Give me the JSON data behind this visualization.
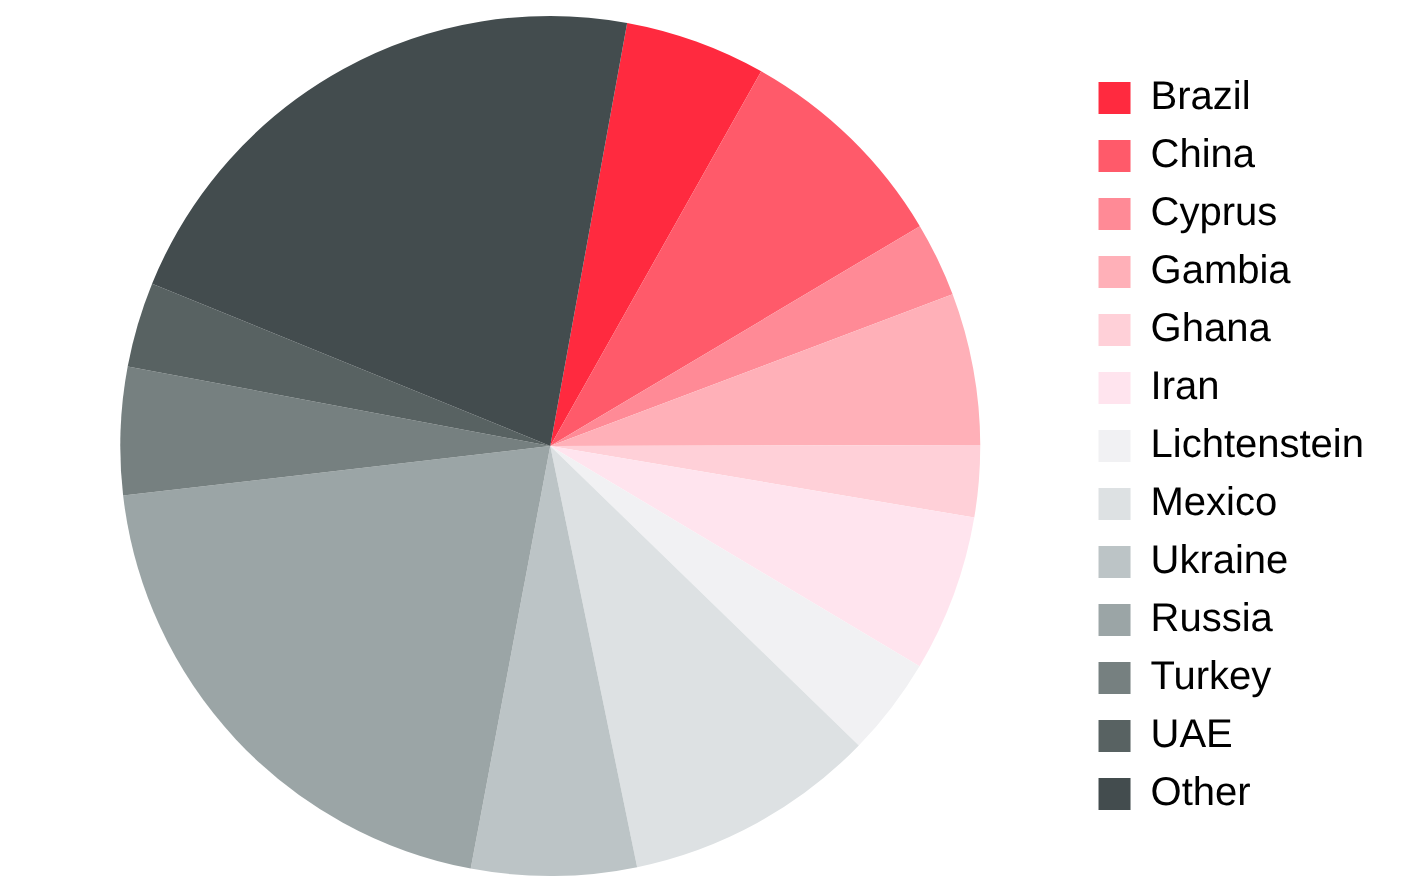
{
  "chart_data": {
    "type": "pie",
    "categories": [
      "Brazil",
      "China",
      "Cyprus",
      "Gambia",
      "Ghana",
      "Iran",
      "Lichtenstein",
      "Mexico",
      "Ukraine",
      "Russia",
      "Turkey",
      "UAE",
      "Other"
    ],
    "values": [
      5.3,
      8.3,
      2.8,
      5.7,
      2.7,
      5.9,
      3.7,
      9.5,
      6.2,
      20.2,
      4.8,
      3.2,
      21.7
    ],
    "colors": [
      "#ff2a3f",
      "#ff5a6a",
      "#ff8a96",
      "#ffb0b8",
      "#ffd0d8",
      "#ffe4ee",
      "#f1f1f3",
      "#dde1e3",
      "#bcc4c6",
      "#9ba5a6",
      "#768080",
      "#586262",
      "#434c4e"
    ],
    "legend": "right"
  }
}
